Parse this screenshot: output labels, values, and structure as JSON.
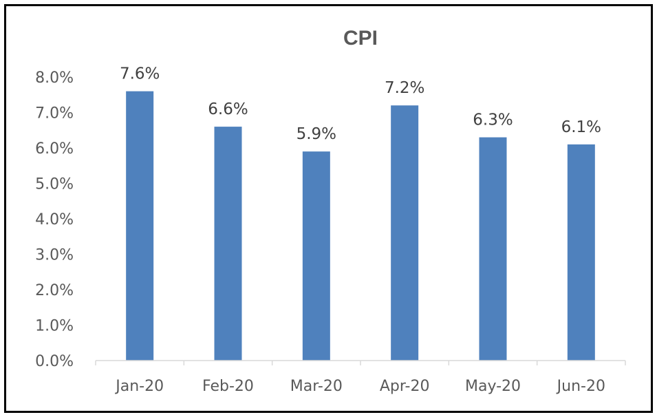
{
  "chart_data": {
    "type": "bar",
    "title": "CPI",
    "categories": [
      "Jan-20",
      "Feb-20",
      "Mar-20",
      "Apr-20",
      "May-20",
      "Jun-20"
    ],
    "values": [
      7.6,
      6.6,
      5.9,
      7.2,
      6.3,
      6.1
    ],
    "data_labels": [
      "7.6%",
      "6.6%",
      "5.9%",
      "7.2%",
      "6.3%",
      "6.1%"
    ],
    "ylim": [
      0,
      8
    ],
    "y_ticks": [
      "0.0%",
      "1.0%",
      "2.0%",
      "3.0%",
      "4.0%",
      "5.0%",
      "6.0%",
      "7.0%",
      "8.0%"
    ],
    "grid": false,
    "legend": "none",
    "bar_color": "#4f81bd"
  }
}
